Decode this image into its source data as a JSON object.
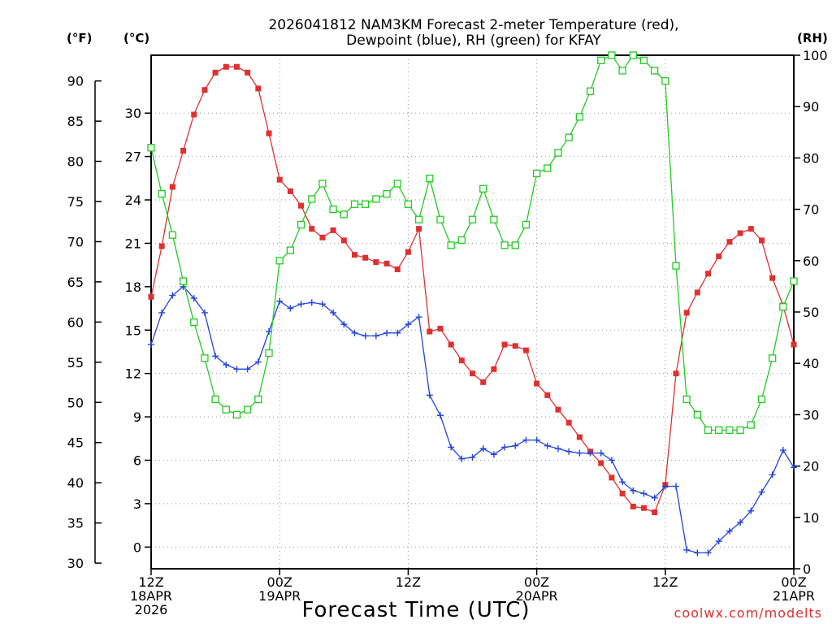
{
  "chart_data": {
    "type": "line",
    "title_lines": [
      "2026041812 NAM3KM Forecast 2-meter Temperature (red),",
      "Dewpoint (blue), RH (green) for KFAY"
    ],
    "xlabel": "Forecast Time (UTC)",
    "credit": "coolwx.com/modelts",
    "unit_labels": {
      "fahrenheit": "(°F)",
      "celsius": "(°C)",
      "rh": "(RH)"
    },
    "x_ticks": [
      {
        "hour": 0,
        "lines": [
          "12Z",
          "18APR",
          "2026"
        ]
      },
      {
        "hour": 12,
        "lines": [
          "00Z",
          "19APR"
        ]
      },
      {
        "hour": 24,
        "lines": [
          "12Z"
        ]
      },
      {
        "hour": 36,
        "lines": [
          "00Z",
          "20APR"
        ]
      },
      {
        "hour": 48,
        "lines": [
          "12Z"
        ]
      },
      {
        "hour": 60,
        "lines": [
          "00Z",
          "21APR"
        ]
      }
    ],
    "xlim": [
      0,
      60
    ],
    "celsius_range": [
      -1.5,
      34
    ],
    "celsius_ticks": [
      0,
      3,
      6,
      9,
      12,
      15,
      18,
      21,
      24,
      27,
      30
    ],
    "fahrenheit_ticks": [
      30,
      35,
      40,
      45,
      50,
      55,
      60,
      65,
      70,
      75,
      80,
      85,
      90
    ],
    "rh_range": [
      0,
      100
    ],
    "rh_ticks": [
      0,
      10,
      20,
      30,
      40,
      50,
      60,
      70,
      80,
      90,
      100
    ],
    "hours": [
      0,
      1,
      2,
      3,
      4,
      5,
      6,
      7,
      8,
      9,
      10,
      11,
      12,
      13,
      14,
      15,
      16,
      17,
      18,
      19,
      20,
      21,
      22,
      23,
      24,
      25,
      26,
      27,
      28,
      29,
      30,
      31,
      32,
      33,
      34,
      35,
      36,
      37,
      38,
      39,
      40,
      41,
      42,
      43,
      44,
      45,
      46,
      47,
      48,
      49,
      50,
      51,
      52,
      53,
      54,
      55,
      56,
      57,
      58,
      59,
      60
    ],
    "series": [
      {
        "name": "2-meter Temperature",
        "axis": "celsius",
        "color": "#e03030",
        "marker": "filled-square",
        "values": [
          17.3,
          20.8,
          24.9,
          27.4,
          29.9,
          31.6,
          32.8,
          33.2,
          33.2,
          32.8,
          31.7,
          28.6,
          25.4,
          24.6,
          23.6,
          22.0,
          21.4,
          21.9,
          21.2,
          20.2,
          20.0,
          19.7,
          19.6,
          19.2,
          20.4,
          22.0,
          14.9,
          15.1,
          14.0,
          12.9,
          12.0,
          11.4,
          12.3,
          14.0,
          13.9,
          13.6,
          11.3,
          10.5,
          9.5,
          8.6,
          7.6,
          6.6,
          5.8,
          4.8,
          3.7,
          2.8,
          2.7,
          2.4,
          4.3,
          12.0,
          16.2,
          17.6,
          18.9,
          20.1,
          21.1,
          21.7,
          22.0,
          21.2,
          18.6,
          16.7,
          14.0
        ]
      },
      {
        "name": "Dewpoint",
        "axis": "celsius",
        "color": "#2244dd",
        "marker": "plus",
        "values": [
          14.0,
          16.2,
          17.4,
          18.0,
          17.2,
          16.2,
          13.2,
          12.6,
          12.3,
          12.3,
          12.8,
          14.9,
          17.0,
          16.5,
          16.8,
          16.9,
          16.8,
          16.2,
          15.4,
          14.8,
          14.6,
          14.6,
          14.8,
          14.8,
          15.4,
          15.9,
          10.5,
          9.1,
          6.9,
          6.1,
          6.2,
          6.8,
          6.4,
          6.9,
          7.0,
          7.4,
          7.4,
          7.0,
          6.8,
          6.6,
          6.5,
          6.5,
          6.5,
          6.0,
          4.5,
          3.9,
          3.7,
          3.4,
          4.2,
          4.2,
          -0.2,
          -0.4,
          -0.4,
          0.4,
          1.1,
          1.7,
          2.5,
          3.8,
          5.0,
          6.7,
          5.5
        ]
      },
      {
        "name": "RH",
        "axis": "rh",
        "color": "#22cc22",
        "marker": "open-square",
        "values": [
          82,
          73,
          65,
          56,
          48,
          41,
          33,
          31,
          30,
          31,
          33,
          42,
          60,
          62,
          67,
          72,
          75,
          70,
          69,
          71,
          71,
          72,
          73,
          75,
          71,
          68,
          76,
          68,
          63,
          64,
          68,
          74,
          68,
          63,
          63,
          67,
          77,
          78,
          81,
          84,
          88,
          93,
          99,
          100,
          97,
          100,
          99,
          97,
          95,
          59,
          33,
          30,
          27,
          27,
          27,
          27,
          28,
          33,
          41,
          51,
          56
        ]
      }
    ]
  }
}
